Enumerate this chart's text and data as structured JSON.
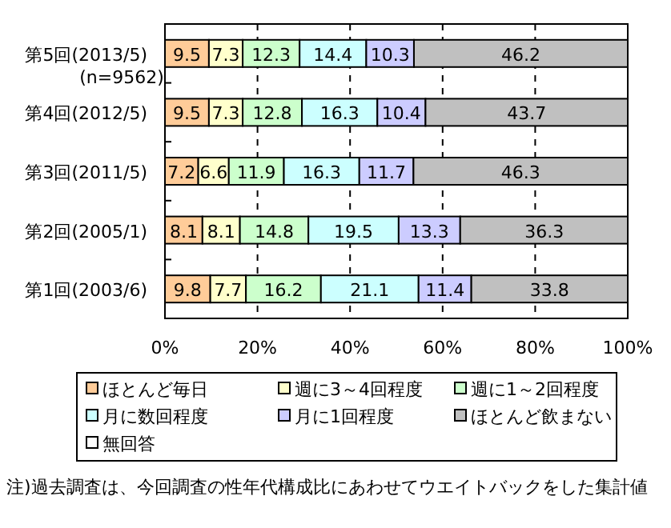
{
  "chart_data": {
    "type": "bar",
    "orientation": "horizontal",
    "stacked": true,
    "data_labels": true,
    "grid": "x",
    "legend": "bottom",
    "categories": [
      "第5回(2013/5)\n(n=9562)",
      "第4回(2012/5)",
      "第3回(2011/5)",
      "第2回(2005/1)",
      "第1回(2003/6)"
    ],
    "series": [
      {
        "name": "ほとんど毎日",
        "color": "#ffcc99",
        "values": [
          9.5,
          9.5,
          7.2,
          8.1,
          9.8
        ]
      },
      {
        "name": "週に3～4回程度",
        "color": "#ffffcc",
        "values": [
          7.3,
          7.3,
          6.6,
          8.1,
          7.7
        ]
      },
      {
        "name": "週に1～2回程度",
        "color": "#ccffcc",
        "values": [
          12.3,
          12.8,
          11.9,
          14.8,
          16.2
        ]
      },
      {
        "name": "月に数回程度",
        "color": "#ccffff",
        "values": [
          14.4,
          16.3,
          16.3,
          19.5,
          21.1
        ]
      },
      {
        "name": "月に1回程度",
        "color": "#ccccff",
        "values": [
          10.3,
          10.4,
          11.7,
          13.3,
          11.4
        ]
      },
      {
        "name": "ほとんど飲まない",
        "color": "#c0c0c0",
        "values": [
          46.2,
          43.7,
          46.3,
          36.3,
          33.8
        ]
      },
      {
        "name": "無回答",
        "color": "#ffffff",
        "values": [
          null,
          null,
          null,
          null,
          null
        ]
      }
    ],
    "xlim": [
      0,
      100
    ],
    "xticks": [
      {
        "value": 0,
        "label": "0%"
      },
      {
        "value": 20,
        "label": "20%"
      },
      {
        "value": 40,
        "label": "40%"
      },
      {
        "value": 60,
        "label": "60%"
      },
      {
        "value": 80,
        "label": "80%"
      },
      {
        "value": 100,
        "label": "100%"
      }
    ],
    "annotations": [
      "注)過去調査は、今回調査の性年代構成比にあわせてウエイトバックをした集計値"
    ]
  }
}
